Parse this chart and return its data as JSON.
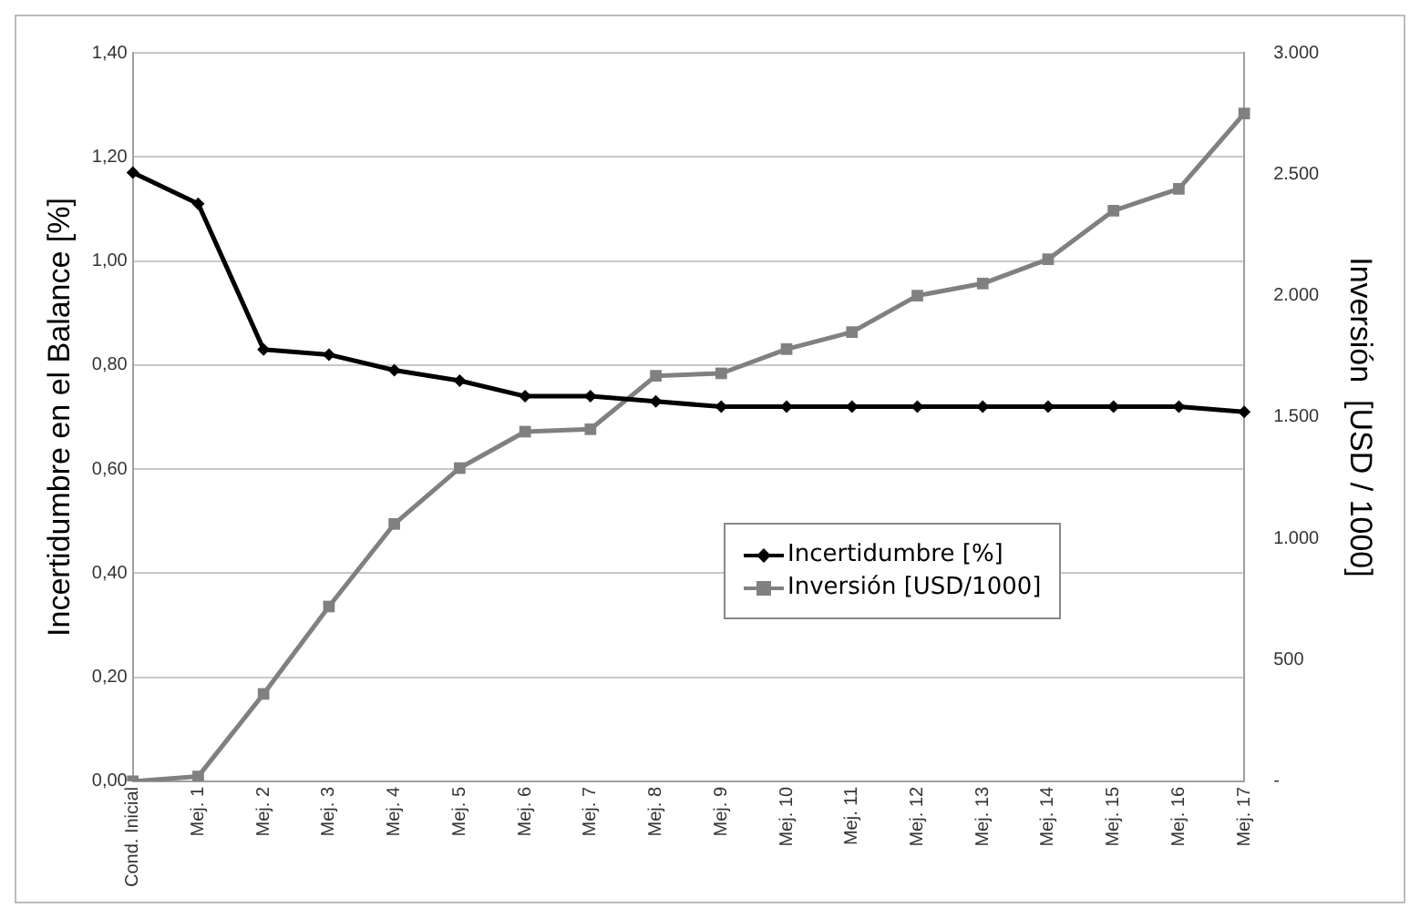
{
  "chart_data": {
    "type": "line",
    "categories": [
      "Cond. Inicial",
      "Mej. 1",
      "Mej. 2",
      "Mej. 3",
      "Mej. 4",
      "Mej. 5",
      "Mej. 6",
      "Mej. 7",
      "Mej. 8",
      "Mej. 9",
      "Mej. 10",
      "Mej. 11",
      "Mej. 12",
      "Mej. 13",
      "Mej. 14",
      "Mej. 15",
      "Mej. 16",
      "Mej. 17"
    ],
    "series": [
      {
        "name": "Incertidumbre [%]",
        "color": "#000000",
        "marker": "diamond",
        "values": [
          1.17,
          1.11,
          0.83,
          0.82,
          0.79,
          0.77,
          0.74,
          0.74,
          0.73,
          0.72,
          0.72,
          0.72,
          0.72,
          0.72,
          0.72,
          0.72,
          0.72,
          0.71
        ]
      },
      {
        "name": "Inversión [USD/1000]",
        "color": "#808080",
        "marker": "square",
        "axis": "y2",
        "values": [
          0,
          20,
          360,
          720,
          1060,
          1290,
          1440,
          1450,
          1670,
          1680,
          1780,
          1850,
          2000,
          2050,
          2150,
          2350,
          2440,
          2750
        ]
      }
    ],
    "ylabel": "Incertidumbre en el Balance [%]",
    "y2label": "Inversión  [USD / 1000]",
    "ylim": [
      0,
      1.4
    ],
    "yticks": [
      {
        "value": 0,
        "label": "0,00"
      },
      {
        "value": 0.2,
        "label": "0,20"
      },
      {
        "value": 0.4,
        "label": "0,40"
      },
      {
        "value": 0.6,
        "label": "0,60"
      },
      {
        "value": 0.8,
        "label": "0,80"
      },
      {
        "value": 1.0,
        "label": "1,00"
      },
      {
        "value": 1.2,
        "label": "1,20"
      },
      {
        "value": 1.4,
        "label": "1,40"
      }
    ],
    "y2lim": [
      0,
      3000
    ],
    "y2ticks": [
      {
        "value": 0,
        "label": "-"
      },
      500,
      {
        "value": 1000,
        "label": "1.000"
      },
      {
        "value": 1500,
        "label": "1.500"
      },
      {
        "value": 2000,
        "label": "2.000"
      },
      {
        "value": 2500,
        "label": "2.500"
      },
      {
        "value": 3000,
        "label": "3.000"
      }
    ],
    "grid": "y",
    "legend": "right",
    "line_style": "solid"
  }
}
